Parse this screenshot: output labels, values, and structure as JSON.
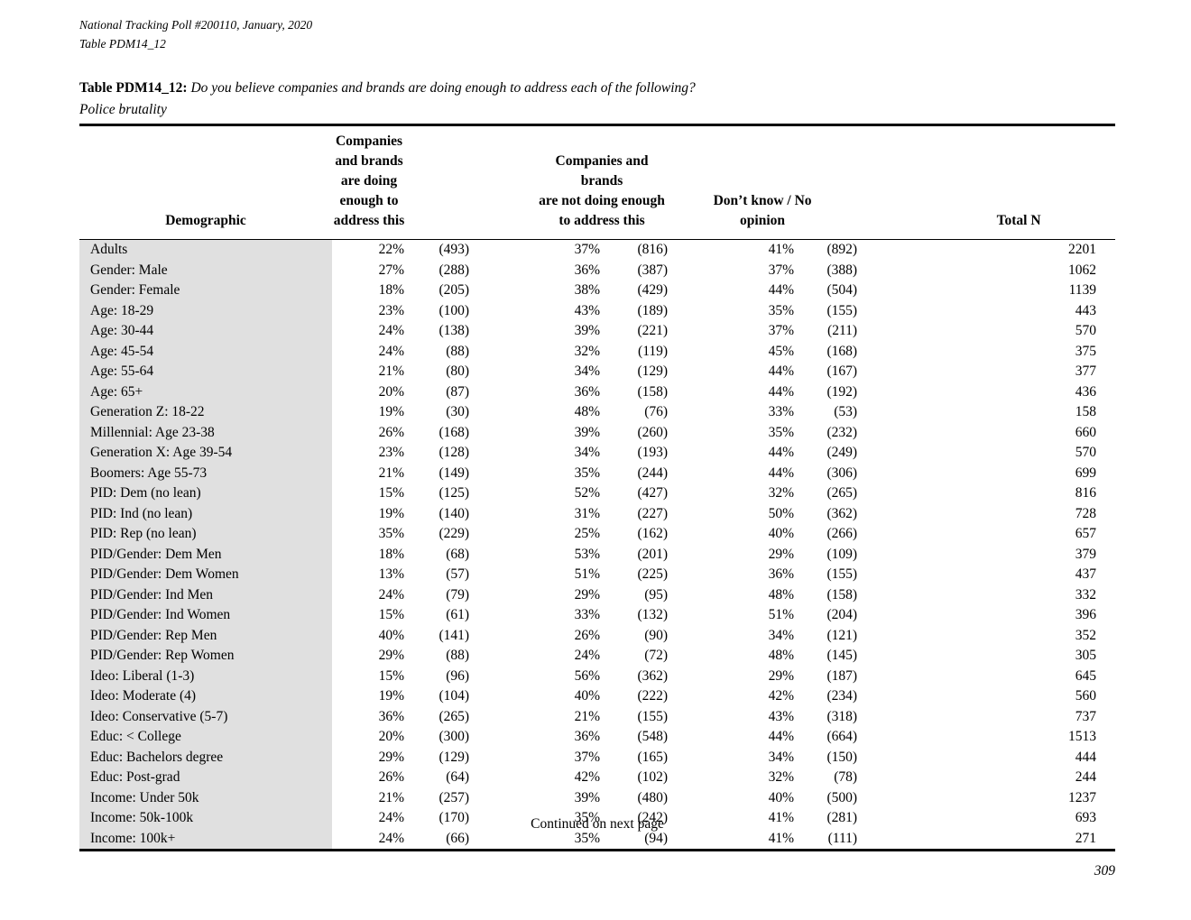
{
  "page": {
    "header_line1": "National Tracking Poll #200110, January, 2020",
    "header_line2": "Table PDM14_12",
    "title_label": "Table PDM14_12:",
    "title_question": "Do you believe companies and brands are doing enough to address each of the following?",
    "title_subject": "Police brutality",
    "continued_note": "Continued on next page",
    "page_number": "309"
  },
  "colors": {
    "demographic_column_bg": "#e0e0e0",
    "rule_color": "#000000",
    "text_color": "#000000"
  },
  "table": {
    "header": {
      "demographic": "Demographic",
      "group1_lines": [
        "Companies and brands",
        "are doing enough to",
        "address this"
      ],
      "group2_lines": [
        "Companies and brands",
        "are not doing enough",
        "to address this"
      ],
      "group3_lines": [
        "Don’t know / No",
        "opinion"
      ],
      "total": "Total N"
    },
    "rows": [
      {
        "label": "Adults",
        "pct1": "22%",
        "n1": "(493)",
        "pct2": "37%",
        "n2": "(816)",
        "pct3": "41%",
        "n3": "(892)",
        "total": "2201"
      },
      {
        "label": "Gender: Male",
        "pct1": "27%",
        "n1": "(288)",
        "pct2": "36%",
        "n2": "(387)",
        "pct3": "37%",
        "n3": "(388)",
        "total": "1062"
      },
      {
        "label": "Gender: Female",
        "pct1": "18%",
        "n1": "(205)",
        "pct2": "38%",
        "n2": "(429)",
        "pct3": "44%",
        "n3": "(504)",
        "total": "1139"
      },
      {
        "label": "Age: 18-29",
        "pct1": "23%",
        "n1": "(100)",
        "pct2": "43%",
        "n2": "(189)",
        "pct3": "35%",
        "n3": "(155)",
        "total": "443"
      },
      {
        "label": "Age: 30-44",
        "pct1": "24%",
        "n1": "(138)",
        "pct2": "39%",
        "n2": "(221)",
        "pct3": "37%",
        "n3": "(211)",
        "total": "570"
      },
      {
        "label": "Age: 45-54",
        "pct1": "24%",
        "n1": "(88)",
        "pct2": "32%",
        "n2": "(119)",
        "pct3": "45%",
        "n3": "(168)",
        "total": "375"
      },
      {
        "label": "Age: 55-64",
        "pct1": "21%",
        "n1": "(80)",
        "pct2": "34%",
        "n2": "(129)",
        "pct3": "44%",
        "n3": "(167)",
        "total": "377"
      },
      {
        "label": "Age: 65+",
        "pct1": "20%",
        "n1": "(87)",
        "pct2": "36%",
        "n2": "(158)",
        "pct3": "44%",
        "n3": "(192)",
        "total": "436"
      },
      {
        "label": "Generation Z: 18-22",
        "pct1": "19%",
        "n1": "(30)",
        "pct2": "48%",
        "n2": "(76)",
        "pct3": "33%",
        "n3": "(53)",
        "total": "158"
      },
      {
        "label": "Millennial: Age 23-38",
        "pct1": "26%",
        "n1": "(168)",
        "pct2": "39%",
        "n2": "(260)",
        "pct3": "35%",
        "n3": "(232)",
        "total": "660"
      },
      {
        "label": "Generation X: Age 39-54",
        "pct1": "23%",
        "n1": "(128)",
        "pct2": "34%",
        "n2": "(193)",
        "pct3": "44%",
        "n3": "(249)",
        "total": "570"
      },
      {
        "label": "Boomers: Age 55-73",
        "pct1": "21%",
        "n1": "(149)",
        "pct2": "35%",
        "n2": "(244)",
        "pct3": "44%",
        "n3": "(306)",
        "total": "699"
      },
      {
        "label": "PID: Dem (no lean)",
        "pct1": "15%",
        "n1": "(125)",
        "pct2": "52%",
        "n2": "(427)",
        "pct3": "32%",
        "n3": "(265)",
        "total": "816"
      },
      {
        "label": "PID: Ind (no lean)",
        "pct1": "19%",
        "n1": "(140)",
        "pct2": "31%",
        "n2": "(227)",
        "pct3": "50%",
        "n3": "(362)",
        "total": "728"
      },
      {
        "label": "PID: Rep (no lean)",
        "pct1": "35%",
        "n1": "(229)",
        "pct2": "25%",
        "n2": "(162)",
        "pct3": "40%",
        "n3": "(266)",
        "total": "657"
      },
      {
        "label": "PID/Gender: Dem Men",
        "pct1": "18%",
        "n1": "(68)",
        "pct2": "53%",
        "n2": "(201)",
        "pct3": "29%",
        "n3": "(109)",
        "total": "379"
      },
      {
        "label": "PID/Gender: Dem Women",
        "pct1": "13%",
        "n1": "(57)",
        "pct2": "51%",
        "n2": "(225)",
        "pct3": "36%",
        "n3": "(155)",
        "total": "437"
      },
      {
        "label": "PID/Gender: Ind Men",
        "pct1": "24%",
        "n1": "(79)",
        "pct2": "29%",
        "n2": "(95)",
        "pct3": "48%",
        "n3": "(158)",
        "total": "332"
      },
      {
        "label": "PID/Gender: Ind Women",
        "pct1": "15%",
        "n1": "(61)",
        "pct2": "33%",
        "n2": "(132)",
        "pct3": "51%",
        "n3": "(204)",
        "total": "396"
      },
      {
        "label": "PID/Gender: Rep Men",
        "pct1": "40%",
        "n1": "(141)",
        "pct2": "26%",
        "n2": "(90)",
        "pct3": "34%",
        "n3": "(121)",
        "total": "352"
      },
      {
        "label": "PID/Gender: Rep Women",
        "pct1": "29%",
        "n1": "(88)",
        "pct2": "24%",
        "n2": "(72)",
        "pct3": "48%",
        "n3": "(145)",
        "total": "305"
      },
      {
        "label": "Ideo: Liberal (1-3)",
        "pct1": "15%",
        "n1": "(96)",
        "pct2": "56%",
        "n2": "(362)",
        "pct3": "29%",
        "n3": "(187)",
        "total": "645"
      },
      {
        "label": "Ideo: Moderate (4)",
        "pct1": "19%",
        "n1": "(104)",
        "pct2": "40%",
        "n2": "(222)",
        "pct3": "42%",
        "n3": "(234)",
        "total": "560"
      },
      {
        "label": "Ideo: Conservative (5-7)",
        "pct1": "36%",
        "n1": "(265)",
        "pct2": "21%",
        "n2": "(155)",
        "pct3": "43%",
        "n3": "(318)",
        "total": "737"
      },
      {
        "label": "Educ: < College",
        "pct1": "20%",
        "n1": "(300)",
        "pct2": "36%",
        "n2": "(548)",
        "pct3": "44%",
        "n3": "(664)",
        "total": "1513"
      },
      {
        "label": "Educ: Bachelors degree",
        "pct1": "29%",
        "n1": "(129)",
        "pct2": "37%",
        "n2": "(165)",
        "pct3": "34%",
        "n3": "(150)",
        "total": "444"
      },
      {
        "label": "Educ: Post-grad",
        "pct1": "26%",
        "n1": "(64)",
        "pct2": "42%",
        "n2": "(102)",
        "pct3": "32%",
        "n3": "(78)",
        "total": "244"
      },
      {
        "label": "Income: Under 50k",
        "pct1": "21%",
        "n1": "(257)",
        "pct2": "39%",
        "n2": "(480)",
        "pct3": "40%",
        "n3": "(500)",
        "total": "1237"
      },
      {
        "label": "Income: 50k-100k",
        "pct1": "24%",
        "n1": "(170)",
        "pct2": "35%",
        "n2": "(242)",
        "pct3": "41%",
        "n3": "(281)",
        "total": "693"
      },
      {
        "label": "Income: 100k+",
        "pct1": "24%",
        "n1": "(66)",
        "pct2": "35%",
        "n2": "(94)",
        "pct3": "41%",
        "n3": "(111)",
        "total": "271"
      }
    ]
  }
}
